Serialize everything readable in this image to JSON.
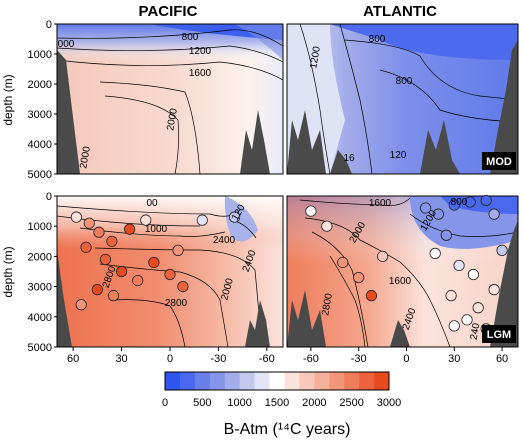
{
  "chart_data": {
    "type": "heatmap",
    "section_titles": [
      "PACIFIC",
      "ATLANTIC"
    ],
    "panels": [
      {
        "tag": "MOD",
        "ylabel": "depth (m)",
        "y_ticks": [
          "0",
          "1000",
          "2000",
          "3000",
          "4000",
          "5000"
        ],
        "pacific_contour_labels": [
          "800",
          "1200",
          "1600",
          "2000",
          "2000",
          "000"
        ],
        "atlantic_contour_labels": [
          "800",
          "800",
          "1200",
          "120",
          "16"
        ],
        "pacific_base": "#f7e1d9",
        "atlantic_base": "#6d86e8"
      },
      {
        "tag": "LGM",
        "ylabel": "depth (m)",
        "y_ticks": [
          "0",
          "1000",
          "2000",
          "3000",
          "4000",
          "5000"
        ],
        "pacific_contour_labels": [
          "1000",
          "2400",
          "2800",
          "2800",
          "2400",
          "2000",
          "00",
          "120"
        ],
        "atlantic_contour_labels": [
          "1600",
          "800",
          "1200",
          "1600",
          "2000",
          "2400",
          "2800",
          "240"
        ],
        "pacific_base": "#f3a88f",
        "atlantic_base": "#f6c3b3"
      }
    ],
    "x_ticks_pacific": [
      "60",
      "30",
      "0",
      "-30",
      "-60"
    ],
    "x_ticks_atlantic": [
      "-60",
      "-30",
      "0",
      "30",
      "60"
    ],
    "colorbar": {
      "xlabel": "B-Atm (¹⁴C years)",
      "ticks": [
        "0",
        "500",
        "1000",
        "1500",
        "2000",
        "2500",
        "3000"
      ],
      "colors": [
        "#2e55f0",
        "#4a68ee",
        "#677eeb",
        "#8595e9",
        "#a3ade9",
        "#c3c9ee",
        "#e3e5f6",
        "#ffffff",
        "#fbe3dc",
        "#f8c9bb",
        "#f5b09a",
        "#f2967a",
        "#ef7c5b",
        "#ec623c",
        "#e84a1f"
      ]
    },
    "lgm_points": [
      {
        "lat": 58,
        "depth": 700,
        "value": 1600
      },
      {
        "lat": 50,
        "depth": 900,
        "value": 2200
      },
      {
        "lat": 44,
        "depth": 1200,
        "value": 2400
      },
      {
        "lat": 36,
        "depth": 1500,
        "value": 2600
      },
      {
        "lat": 25,
        "depth": 1100,
        "value": 2900
      },
      {
        "lat": 52,
        "depth": 1700,
        "value": 2600
      },
      {
        "lat": 40,
        "depth": 2100,
        "value": 2700
      },
      {
        "lat": 30,
        "depth": 2500,
        "value": 2800
      },
      {
        "lat": 20,
        "depth": 2800,
        "value": 2500
      },
      {
        "lat": 10,
        "depth": 2200,
        "value": 2900
      },
      {
        "lat": 0,
        "depth": 2600,
        "value": 2700
      },
      {
        "lat": -8,
        "depth": 3000,
        "value": 2600
      },
      {
        "lat": 45,
        "depth": 3100,
        "value": 2800
      },
      {
        "lat": 35,
        "depth": 3300,
        "value": 2500
      },
      {
        "lat": 55,
        "depth": 3600,
        "value": 2300
      },
      {
        "lat": -20,
        "depth": 800,
        "value": 1200
      },
      {
        "lat": -40,
        "depth": 700,
        "value": 1000
      },
      {
        "lat": -5,
        "depth": 1800,
        "value": 2200
      },
      {
        "lat": 15,
        "depth": 800,
        "value": 1700
      },
      {
        "a_lat": -60,
        "depth": 500,
        "value": 1400
      },
      {
        "a_lat": -50,
        "depth": 1000,
        "value": 1700
      },
      {
        "a_lat": -40,
        "depth": 2200,
        "value": 2200
      },
      {
        "a_lat": -30,
        "depth": 2700,
        "value": 2300
      },
      {
        "a_lat": -22,
        "depth": 3300,
        "value": 2800
      },
      {
        "a_lat": -15,
        "depth": 2000,
        "value": 1900
      },
      {
        "a_lat": 12,
        "depth": 400,
        "value": 600
      },
      {
        "a_lat": 20,
        "depth": 600,
        "value": 700
      },
      {
        "a_lat": 30,
        "depth": 300,
        "value": 300
      },
      {
        "a_lat": 40,
        "depth": 200,
        "value": 200
      },
      {
        "a_lat": 50,
        "depth": 150,
        "value": 300
      },
      {
        "a_lat": 55,
        "depth": 600,
        "value": 900
      },
      {
        "a_lat": 25,
        "depth": 1300,
        "value": 700
      },
      {
        "a_lat": 18,
        "depth": 1900,
        "value": 1500
      },
      {
        "a_lat": 33,
        "depth": 2300,
        "value": 1200
      },
      {
        "a_lat": 42,
        "depth": 2600,
        "value": 1500
      },
      {
        "a_lat": 28,
        "depth": 3300,
        "value": 1700
      },
      {
        "a_lat": 45,
        "depth": 3700,
        "value": 1600
      },
      {
        "a_lat": 38,
        "depth": 4100,
        "value": 1500
      },
      {
        "a_lat": 50,
        "depth": 4400,
        "value": 1800
      },
      {
        "a_lat": 30,
        "depth": 4300,
        "value": 1500
      },
      {
        "a_lat": 55,
        "depth": 3100,
        "value": 1700
      },
      {
        "a_lat": 60,
        "depth": 1800,
        "value": 1000
      }
    ]
  }
}
